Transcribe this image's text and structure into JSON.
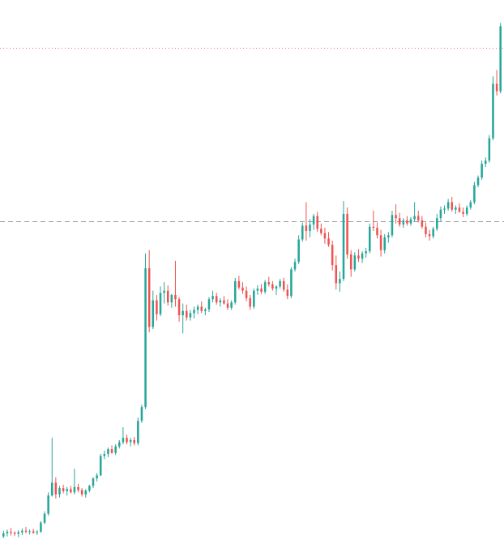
{
  "chart_data": {
    "type": "candlestick",
    "title": "",
    "xlabel": "",
    "ylabel": "",
    "ylim": [
      0,
      100
    ],
    "grid": false,
    "legend": "none",
    "colors": {
      "up": "#26a69a",
      "down": "#ef5350",
      "reference_line": "#9aa0a6",
      "high_line": "#e57373"
    },
    "reference_lines": [
      {
        "name": "dashed-reference-line",
        "value": 59.4,
        "style": "dashed"
      },
      {
        "name": "dotted-high-line",
        "value": 92.0,
        "style": "dotted"
      }
    ],
    "series": [
      {
        "name": "",
        "ohlc": [
          [
            0.3,
            1.4,
            0.0,
            0.9
          ],
          [
            0.9,
            1.6,
            0.3,
            1.2
          ],
          [
            1.2,
            1.9,
            0.5,
            1.0
          ],
          [
            1.0,
            1.3,
            0.4,
            0.8
          ],
          [
            0.8,
            1.5,
            0.2,
            1.1
          ],
          [
            1.1,
            1.8,
            0.6,
            1.4
          ],
          [
            1.4,
            2.1,
            0.9,
            1.2
          ],
          [
            1.2,
            1.6,
            0.7,
            1.3
          ],
          [
            1.3,
            1.7,
            0.8,
            1.0
          ],
          [
            1.0,
            1.5,
            0.6,
            1.2
          ],
          [
            1.2,
            3.2,
            1.0,
            2.9
          ],
          [
            2.9,
            5.0,
            2.6,
            4.6
          ],
          [
            4.6,
            8.6,
            4.2,
            8.0
          ],
          [
            8.0,
            18.8,
            7.8,
            10.4
          ],
          [
            10.4,
            11.4,
            7.4,
            8.2
          ],
          [
            8.2,
            9.8,
            7.6,
            9.4
          ],
          [
            9.4,
            10.0,
            8.4,
            8.8
          ],
          [
            8.8,
            9.6,
            8.0,
            9.2
          ],
          [
            9.2,
            9.8,
            8.4,
            8.6
          ],
          [
            8.6,
            13.0,
            8.2,
            9.6
          ],
          [
            9.6,
            10.2,
            8.6,
            9.0
          ],
          [
            9.0,
            9.4,
            7.8,
            8.2
          ],
          [
            8.2,
            9.2,
            7.6,
            8.9
          ],
          [
            8.9,
            10.0,
            8.6,
            9.8
          ],
          [
            9.8,
            11.4,
            9.4,
            11.2
          ],
          [
            11.2,
            12.2,
            10.6,
            11.8
          ],
          [
            11.8,
            15.8,
            11.6,
            15.4
          ],
          [
            15.4,
            16.4,
            14.8,
            15.8
          ],
          [
            15.8,
            17.0,
            15.2,
            16.7
          ],
          [
            16.7,
            17.4,
            15.8,
            16.0
          ],
          [
            16.0,
            17.6,
            15.6,
            17.2
          ],
          [
            17.2,
            18.4,
            16.8,
            18.0
          ],
          [
            18.0,
            20.8,
            17.6,
            18.8
          ],
          [
            18.8,
            19.4,
            17.6,
            18.0
          ],
          [
            18.0,
            18.8,
            17.2,
            18.4
          ],
          [
            18.4,
            19.0,
            17.4,
            17.8
          ],
          [
            17.8,
            22.6,
            17.4,
            22.0
          ],
          [
            22.0,
            25.0,
            21.6,
            24.6
          ],
          [
            24.6,
            53.4,
            24.2,
            50.6
          ],
          [
            50.6,
            54.0,
            38.6,
            39.6
          ],
          [
            39.6,
            46.4,
            39.2,
            44.6
          ],
          [
            44.6,
            45.6,
            40.8,
            42.0
          ],
          [
            42.0,
            47.2,
            41.6,
            46.0
          ],
          [
            46.0,
            48.0,
            44.0,
            46.4
          ],
          [
            46.4,
            47.4,
            43.6,
            44.2
          ],
          [
            44.2,
            45.8,
            43.2,
            45.6
          ],
          [
            45.6,
            52.0,
            43.4,
            44.8
          ],
          [
            44.8,
            45.2,
            40.6,
            41.8
          ],
          [
            41.8,
            44.0,
            38.4,
            42.6
          ],
          [
            42.6,
            43.8,
            40.8,
            41.4
          ],
          [
            41.4,
            42.8,
            40.8,
            42.2
          ],
          [
            42.2,
            43.4,
            41.2,
            42.8
          ],
          [
            42.8,
            43.8,
            42.0,
            43.4
          ],
          [
            43.4,
            44.4,
            42.2,
            42.6
          ],
          [
            42.6,
            43.2,
            41.8,
            42.9
          ],
          [
            42.9,
            45.2,
            42.4,
            44.8
          ],
          [
            44.8,
            46.4,
            44.2,
            45.4
          ],
          [
            45.4,
            46.0,
            43.8,
            44.2
          ],
          [
            44.2,
            45.0,
            43.4,
            44.6
          ],
          [
            44.6,
            45.4,
            43.8,
            44.0
          ],
          [
            44.0,
            44.8,
            42.8,
            43.2
          ],
          [
            43.2,
            44.6,
            42.8,
            44.2
          ],
          [
            44.2,
            48.8,
            43.8,
            48.2
          ],
          [
            48.2,
            49.2,
            46.6,
            47.0
          ],
          [
            47.0,
            48.0,
            45.8,
            46.4
          ],
          [
            46.4,
            47.2,
            44.4,
            45.0
          ],
          [
            45.0,
            45.6,
            42.8,
            43.4
          ],
          [
            43.4,
            46.8,
            43.0,
            46.4
          ],
          [
            46.4,
            47.4,
            45.6,
            46.8
          ],
          [
            46.8,
            47.6,
            45.8,
            46.2
          ],
          [
            46.2,
            48.4,
            45.8,
            48.0
          ],
          [
            48.0,
            49.0,
            47.2,
            47.6
          ],
          [
            47.6,
            48.2,
            46.4,
            46.8
          ],
          [
            46.8,
            47.4,
            45.6,
            47.2
          ],
          [
            47.2,
            48.6,
            46.8,
            48.2
          ],
          [
            48.2,
            48.8,
            46.2,
            46.6
          ],
          [
            46.6,
            47.6,
            44.8,
            45.4
          ],
          [
            45.4,
            50.8,
            45.0,
            50.4
          ],
          [
            50.4,
            52.4,
            50.0,
            51.8
          ],
          [
            51.8,
            56.8,
            51.4,
            56.0
          ],
          [
            56.0,
            59.2,
            55.6,
            58.6
          ],
          [
            58.6,
            63.0,
            55.8,
            57.6
          ],
          [
            57.6,
            59.8,
            56.4,
            58.8
          ],
          [
            58.8,
            60.8,
            57.8,
            60.4
          ],
          [
            60.4,
            61.2,
            57.4,
            58.0
          ],
          [
            58.0,
            59.0,
            56.8,
            57.2
          ],
          [
            57.2,
            58.2,
            55.2,
            56.2
          ],
          [
            56.2,
            57.4,
            54.6,
            55.0
          ],
          [
            55.0,
            55.8,
            50.2,
            51.2
          ],
          [
            51.2,
            53.0,
            46.6,
            47.8
          ],
          [
            47.8,
            50.0,
            46.2,
            48.6
          ],
          [
            48.6,
            63.2,
            48.2,
            60.8
          ],
          [
            60.8,
            62.0,
            52.4,
            53.2
          ],
          [
            53.2,
            54.0,
            49.0,
            50.4
          ],
          [
            50.4,
            53.6,
            50.0,
            53.0
          ],
          [
            53.0,
            54.2,
            51.8,
            52.4
          ],
          [
            52.4,
            53.8,
            51.6,
            53.4
          ],
          [
            53.4,
            54.4,
            52.6,
            53.8
          ],
          [
            53.8,
            59.0,
            53.4,
            58.4
          ],
          [
            58.4,
            61.4,
            57.6,
            58.2
          ],
          [
            58.2,
            59.2,
            56.2,
            56.8
          ],
          [
            56.8,
            57.8,
            52.8,
            54.0
          ],
          [
            54.0,
            57.0,
            53.4,
            56.4
          ],
          [
            56.4,
            57.4,
            55.4,
            56.8
          ],
          [
            56.8,
            61.4,
            56.4,
            60.6
          ],
          [
            60.6,
            62.6,
            59.0,
            60.0
          ],
          [
            60.0,
            61.0,
            58.4,
            58.8
          ],
          [
            58.8,
            60.0,
            58.2,
            59.6
          ],
          [
            59.6,
            60.4,
            58.6,
            59.0
          ],
          [
            59.0,
            60.2,
            58.6,
            59.8
          ],
          [
            59.8,
            63.0,
            59.4,
            60.4
          ],
          [
            60.4,
            61.4,
            59.2,
            59.6
          ],
          [
            59.6,
            60.4,
            58.0,
            58.4
          ],
          [
            58.4,
            59.2,
            56.4,
            57.0
          ],
          [
            57.0,
            57.8,
            55.8,
            56.6
          ],
          [
            56.6,
            58.4,
            56.2,
            58.0
          ],
          [
            58.0,
            60.8,
            57.6,
            60.0
          ],
          [
            60.0,
            62.2,
            59.4,
            61.6
          ],
          [
            61.6,
            62.4,
            60.8,
            61.8
          ],
          [
            61.8,
            63.6,
            61.4,
            63.0
          ],
          [
            63.0,
            64.0,
            61.2,
            61.6
          ],
          [
            61.6,
            62.4,
            60.8,
            62.0
          ],
          [
            62.0,
            62.8,
            61.0,
            61.2
          ],
          [
            61.2,
            62.0,
            60.2,
            60.8
          ],
          [
            60.8,
            62.4,
            60.4,
            62.0
          ],
          [
            62.0,
            63.4,
            61.6,
            63.0
          ],
          [
            63.0,
            66.8,
            62.6,
            66.2
          ],
          [
            66.2,
            68.0,
            65.8,
            67.6
          ],
          [
            67.6,
            70.8,
            67.2,
            70.2
          ],
          [
            70.2,
            71.4,
            69.6,
            70.8
          ],
          [
            70.8,
            75.6,
            70.4,
            75.0
          ],
          [
            75.0,
            86.6,
            74.6,
            85.2
          ],
          [
            85.2,
            87.8,
            83.0,
            83.8
          ],
          [
            83.8,
            96.6,
            83.4,
            96.0
          ]
        ]
      }
    ]
  }
}
